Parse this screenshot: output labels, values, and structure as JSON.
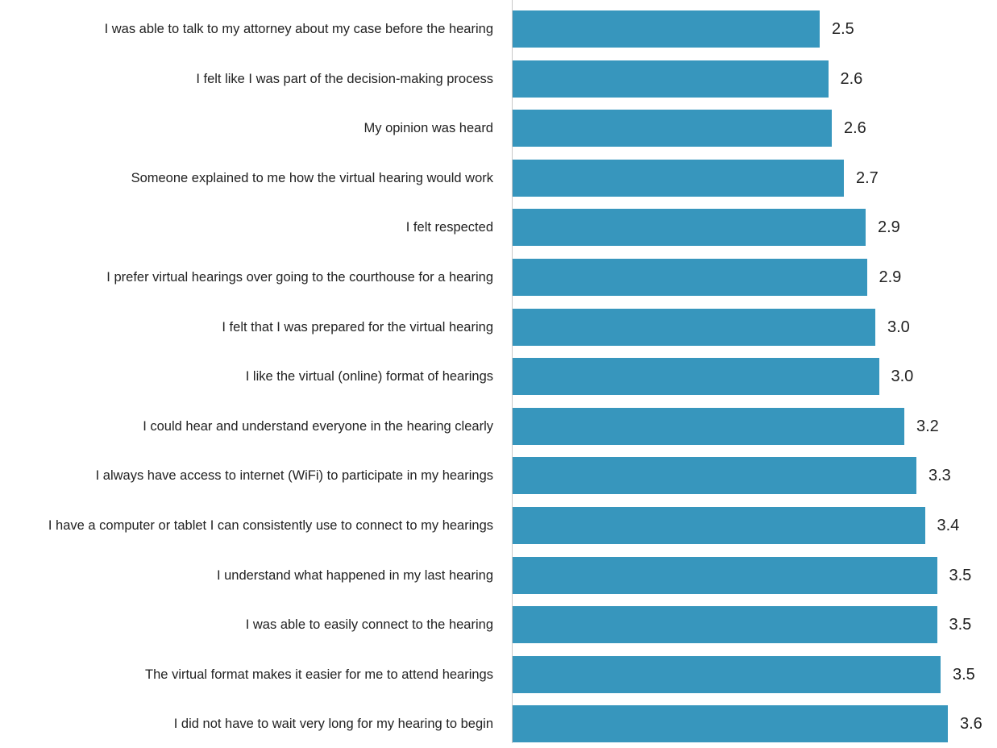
{
  "chart_data": {
    "type": "hbar",
    "categories": [
      "I was able to talk to my attorney about my case before the hearing",
      "I felt like I was part of the decision-making process",
      "My opinion was heard",
      "Someone explained to me how the virtual hearing would work",
      "I felt respected",
      "I prefer virtual hearings over going to the courthouse for a hearing",
      "I felt that I was prepared for the virtual hearing",
      "I like the virtual (online) format of hearings",
      "I could hear and understand everyone in the hearing clearly",
      "I always have access to internet (WiFi) to participate in my hearings",
      "I have a computer or tablet I can consistently use to connect to my hearings",
      "I understand what happened in my last hearing",
      "I was able to easily connect to the hearing",
      "The virtual format makes it easier for me to attend hearings",
      "I did not have to wait very long for my hearing to begin"
    ],
    "values": [
      2.54,
      2.61,
      2.64,
      2.74,
      2.92,
      2.93,
      3.0,
      3.03,
      3.24,
      3.34,
      3.41,
      3.51,
      3.51,
      3.54,
      3.6
    ],
    "value_labels": [
      "2.5",
      "2.6",
      "2.6",
      "2.7",
      "2.9",
      "2.9",
      "3.0",
      "3.0",
      "3.2",
      "3.3",
      "3.4",
      "3.5",
      "3.5",
      "3.5",
      "3.6"
    ],
    "color": "#3796bd",
    "xlim": [
      0,
      4
    ]
  }
}
